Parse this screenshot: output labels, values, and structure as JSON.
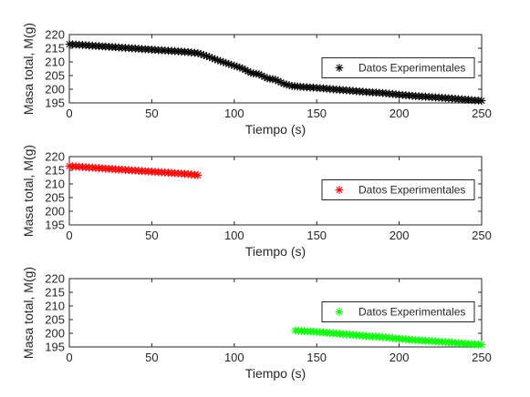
{
  "chart_data": [
    {
      "type": "scatter",
      "title": "",
      "xlabel": "Tiempo (s)",
      "ylabel": "Masa total, M(g)",
      "xlim": [
        0,
        250
      ],
      "ylim": [
        195,
        220
      ],
      "xticks": [
        0,
        50,
        100,
        150,
        200,
        250
      ],
      "yticks": [
        195,
        200,
        205,
        210,
        215,
        220
      ],
      "grid": false,
      "legend_position": "right",
      "marker": "asterisk",
      "series": [
        {
          "name": "Datos Experimentales",
          "color": "#000000",
          "x": [
            0,
            10,
            20,
            30,
            40,
            50,
            60,
            70,
            78,
            85,
            90,
            95,
            100,
            105,
            110,
            115,
            120,
            125,
            130,
            135,
            140,
            150,
            160,
            170,
            180,
            190,
            200,
            210,
            220,
            230,
            240,
            250
          ],
          "y": [
            216.5,
            216.1,
            215.7,
            215.3,
            214.9,
            214.5,
            214.1,
            213.7,
            213.2,
            211.8,
            210.6,
            209.6,
            208.6,
            207.6,
            206.0,
            205.5,
            204.0,
            203.5,
            202.0,
            201.2,
            200.9,
            200.5,
            200.0,
            199.5,
            199.0,
            198.6,
            198.0,
            197.5,
            197.1,
            196.7,
            196.2,
            195.8
          ]
        }
      ]
    },
    {
      "type": "scatter",
      "title": "",
      "xlabel": "Tiempo (s)",
      "ylabel": "Masa total, M(g)",
      "xlim": [
        0,
        250
      ],
      "ylim": [
        195,
        220
      ],
      "xticks": [
        0,
        50,
        100,
        150,
        200,
        250
      ],
      "yticks": [
        195,
        200,
        205,
        210,
        215,
        220
      ],
      "grid": false,
      "legend_position": "right",
      "marker": "asterisk",
      "series": [
        {
          "name": "Datos Experimentales",
          "color": "#ff0000",
          "x": [
            0,
            10,
            20,
            30,
            40,
            50,
            60,
            70,
            78
          ],
          "y": [
            216.5,
            216.1,
            215.7,
            215.3,
            214.9,
            214.5,
            214.1,
            213.7,
            213.2
          ]
        }
      ]
    },
    {
      "type": "scatter",
      "title": "",
      "xlabel": "Tiempo (s)",
      "ylabel": "Masa total, M(g)",
      "xlim": [
        0,
        250
      ],
      "ylim": [
        195,
        220
      ],
      "xticks": [
        0,
        50,
        100,
        150,
        200,
        250
      ],
      "yticks": [
        195,
        200,
        205,
        210,
        215,
        220
      ],
      "grid": false,
      "legend_position": "right",
      "marker": "asterisk",
      "series": [
        {
          "name": "Datos Experimentales",
          "color": "#00ff00",
          "x": [
            137,
            150,
            160,
            170,
            180,
            190,
            200,
            210,
            220,
            230,
            240,
            250
          ],
          "y": [
            201.0,
            200.5,
            200.0,
            199.5,
            199.0,
            198.6,
            198.0,
            197.5,
            197.1,
            196.7,
            196.2,
            195.8
          ]
        }
      ]
    }
  ]
}
